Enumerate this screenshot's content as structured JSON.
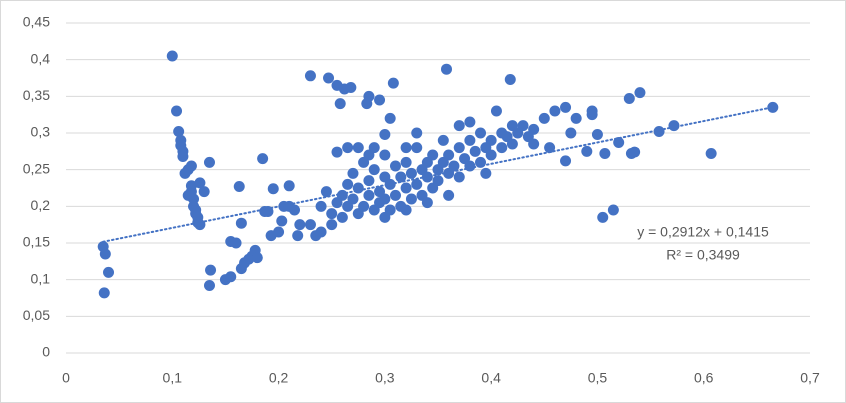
{
  "chart_data": {
    "type": "scatter",
    "color": "#4472c4",
    "grid": true,
    "x": [
      0.035,
      0.036,
      0.037,
      0.04,
      0.1,
      0.104,
      0.106,
      0.108,
      0.108,
      0.11,
      0.11,
      0.112,
      0.115,
      0.118,
      0.115,
      0.118,
      0.118,
      0.12,
      0.12,
      0.122,
      0.122,
      0.124,
      0.124,
      0.126,
      0.126,
      0.13,
      0.135,
      0.136,
      0.135,
      0.15,
      0.155,
      0.155,
      0.16,
      0.163,
      0.165,
      0.165,
      0.168,
      0.172,
      0.175,
      0.178,
      0.18,
      0.185,
      0.187,
      0.19,
      0.193,
      0.195,
      0.2,
      0.203,
      0.205,
      0.21,
      0.21,
      0.215,
      0.218,
      0.22,
      0.23,
      0.247,
      0.255,
      0.258,
      0.262,
      0.268,
      0.283,
      0.285,
      0.295,
      0.305,
      0.308,
      0.358,
      0.418,
      0.255,
      0.265,
      0.275,
      0.24,
      0.245,
      0.25,
      0.25,
      0.255,
      0.26,
      0.26,
      0.265,
      0.265,
      0.27,
      0.27,
      0.275,
      0.275,
      0.28,
      0.28,
      0.285,
      0.285,
      0.29,
      0.29,
      0.295,
      0.295,
      0.3,
      0.3,
      0.3,
      0.305,
      0.305,
      0.31,
      0.31,
      0.315,
      0.315,
      0.32,
      0.32,
      0.325,
      0.325,
      0.33,
      0.33,
      0.335,
      0.335,
      0.34,
      0.34,
      0.345,
      0.345,
      0.35,
      0.35,
      0.355,
      0.355,
      0.36,
      0.36,
      0.365,
      0.37,
      0.37,
      0.375,
      0.38,
      0.38,
      0.385,
      0.39,
      0.39,
      0.395,
      0.4,
      0.4,
      0.405,
      0.41,
      0.41,
      0.415,
      0.42,
      0.42,
      0.425,
      0.43,
      0.435,
      0.44,
      0.395,
      0.3,
      0.32,
      0.285,
      0.24,
      0.23,
      0.235,
      0.29,
      0.33,
      0.37,
      0.38,
      0.3,
      0.32,
      0.34,
      0.36,
      0.44,
      0.45,
      0.46,
      0.47,
      0.475,
      0.48,
      0.49,
      0.495,
      0.495,
      0.5,
      0.505,
      0.507,
      0.515,
      0.52,
      0.53,
      0.532,
      0.535,
      0.54,
      0.558,
      0.572,
      0.607,
      0.665,
      0.47,
      0.455
    ],
    "values": [
      0.145,
      0.082,
      0.135,
      0.11,
      0.405,
      0.33,
      0.302,
      0.29,
      0.283,
      0.275,
      0.268,
      0.245,
      0.25,
      0.255,
      0.215,
      0.22,
      0.228,
      0.21,
      0.2,
      0.195,
      0.19,
      0.185,
      0.178,
      0.175,
      0.232,
      0.22,
      0.26,
      0.113,
      0.092,
      0.1,
      0.104,
      0.152,
      0.15,
      0.227,
      0.177,
      0.115,
      0.123,
      0.128,
      0.132,
      0.14,
      0.13,
      0.265,
      0.193,
      0.193,
      0.16,
      0.224,
      0.165,
      0.18,
      0.2,
      0.2,
      0.228,
      0.195,
      0.16,
      0.175,
      0.378,
      0.375,
      0.365,
      0.34,
      0.36,
      0.362,
      0.34,
      0.35,
      0.345,
      0.32,
      0.368,
      0.387,
      0.373,
      0.274,
      0.28,
      0.28,
      0.2,
      0.22,
      0.19,
      0.175,
      0.205,
      0.215,
      0.185,
      0.23,
      0.2,
      0.245,
      0.21,
      0.19,
      0.225,
      0.26,
      0.2,
      0.215,
      0.235,
      0.25,
      0.195,
      0.22,
      0.205,
      0.24,
      0.27,
      0.21,
      0.23,
      0.195,
      0.255,
      0.215,
      0.24,
      0.2,
      0.26,
      0.225,
      0.21,
      0.245,
      0.23,
      0.28,
      0.25,
      0.215,
      0.24,
      0.26,
      0.225,
      0.27,
      0.25,
      0.235,
      0.29,
      0.26,
      0.245,
      0.27,
      0.255,
      0.28,
      0.24,
      0.265,
      0.29,
      0.255,
      0.275,
      0.3,
      0.26,
      0.28,
      0.29,
      0.27,
      0.33,
      0.3,
      0.28,
      0.295,
      0.31,
      0.285,
      0.3,
      0.31,
      0.295,
      0.285,
      0.245,
      0.298,
      0.28,
      0.27,
      0.165,
      0.175,
      0.16,
      0.28,
      0.3,
      0.31,
      0.315,
      0.185,
      0.195,
      0.205,
      0.215,
      0.305,
      0.32,
      0.33,
      0.335,
      0.3,
      0.32,
      0.275,
      0.33,
      0.325,
      0.298,
      0.185,
      0.272,
      0.195,
      0.287,
      0.347,
      0.272,
      0.274,
      0.355,
      0.302,
      0.31,
      0.272,
      0.335,
      0.262,
      0.28
    ],
    "xlim": [
      0,
      0.7
    ],
    "xticks": [
      0,
      {
        "value": 0.1,
        "label": "0,1"
      },
      {
        "value": 0.2,
        "label": "0,2"
      },
      {
        "value": 0.3,
        "label": "0,3"
      },
      {
        "value": 0.4,
        "label": "0,4"
      },
      {
        "value": 0.5,
        "label": "0,5"
      },
      {
        "value": 0.6,
        "label": "0,6"
      },
      {
        "value": 0.7,
        "label": "0,7"
      }
    ],
    "ylim": [
      0,
      0.45
    ],
    "yticks": [
      0,
      {
        "value": 0.05,
        "label": "0,05"
      },
      {
        "value": 0.1,
        "label": "0,1"
      },
      {
        "value": 0.15,
        "label": "0,15"
      },
      {
        "value": 0.2,
        "label": "0,2"
      },
      {
        "value": 0.25,
        "label": "0,25"
      },
      {
        "value": 0.3,
        "label": "0,3"
      },
      {
        "value": 0.35,
        "label": "0,35"
      },
      {
        "value": 0.4,
        "label": "0,4"
      },
      {
        "value": 0.45,
        "label": "0,45"
      }
    ],
    "trendline": {
      "slope": 0.2912,
      "intercept": 0.1415,
      "equation": "y = 0,2912x + 0,1415",
      "r_squared": "R² = 0,3499"
    }
  }
}
